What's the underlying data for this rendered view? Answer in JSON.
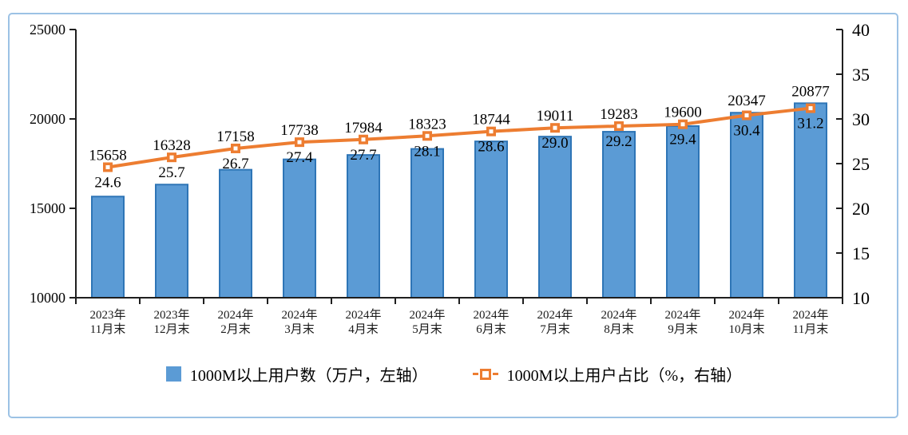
{
  "frame": {
    "border_color": "#9CC2E5"
  },
  "legend": {
    "items": [
      {
        "label": "1000M以上用户数（万户，左轴）",
        "swatch": "bar-swatch",
        "color": "#5B9BD5"
      },
      {
        "label": "1000M以上用户占比（%，右轴）",
        "swatch": "line-marker-swatch",
        "color": "#ED7D31"
      }
    ]
  },
  "chart_data": {
    "type": "bar+line",
    "categories": [
      [
        "2023年",
        "11月末"
      ],
      [
        "2023年",
        "12月末"
      ],
      [
        "2024年",
        "2月末"
      ],
      [
        "2024年",
        "3月末"
      ],
      [
        "2024年",
        "4月末"
      ],
      [
        "2024年",
        "5月末"
      ],
      [
        "2024年",
        "6月末"
      ],
      [
        "2024年",
        "7月末"
      ],
      [
        "2024年",
        "8月末"
      ],
      [
        "2024年",
        "9月末"
      ],
      [
        "2024年",
        "10月末"
      ],
      [
        "2024年",
        "11月末"
      ]
    ],
    "series": [
      {
        "name": "1000M以上用户数（万户，左轴）",
        "type": "bar",
        "axis": "left",
        "color": "#5B9BD5",
        "border_color": "#2E75B6",
        "values": [
          15658,
          16328,
          17158,
          17738,
          17984,
          18323,
          18744,
          19011,
          19283,
          19600,
          20347,
          20877
        ]
      },
      {
        "name": "1000M以上用户占比（%，右轴）",
        "type": "line",
        "axis": "right",
        "color": "#ED7D31",
        "marker": "square-white-center",
        "values": [
          24.6,
          25.7,
          26.7,
          27.4,
          27.7,
          28.1,
          28.6,
          29.0,
          29.2,
          29.4,
          30.4,
          31.2
        ]
      }
    ],
    "left_axis": {
      "min": 10000,
      "max": 25000,
      "ticks": [
        25000,
        20000,
        15000,
        10000
      ]
    },
    "right_axis": {
      "min": 10,
      "max": 40,
      "ticks": [
        40,
        35,
        30,
        25,
        20,
        15,
        10
      ]
    },
    "axis_color": "#1f1f1f",
    "grid": false,
    "legend_position": "bottom",
    "data_labels": true
  }
}
